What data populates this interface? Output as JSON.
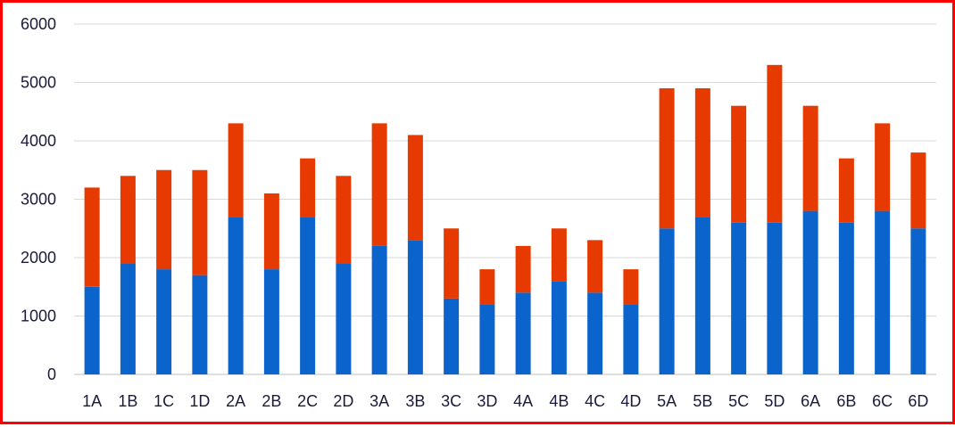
{
  "chart_data": {
    "type": "bar",
    "stacked": true,
    "categories": [
      "1A",
      "1B",
      "1C",
      "1D",
      "2A",
      "2B",
      "2C",
      "2D",
      "3A",
      "3B",
      "3C",
      "3D",
      "4A",
      "4B",
      "4C",
      "4D",
      "5A",
      "5B",
      "5C",
      "5D",
      "6A",
      "6B",
      "6C",
      "6D"
    ],
    "series": [
      {
        "color": "#0a64cc",
        "values": [
          1500,
          1900,
          1800,
          1700,
          2700,
          1800,
          2700,
          1900,
          2200,
          2300,
          1300,
          1200,
          1400,
          1600,
          1400,
          1200,
          2500,
          2700,
          2600,
          2600,
          2800,
          2600,
          2800,
          2500
        ]
      },
      {
        "color": "#e63a00",
        "values": [
          1700,
          1500,
          1700,
          1800,
          1600,
          1300,
          1000,
          1500,
          2100,
          1800,
          1200,
          600,
          800,
          900,
          900,
          600,
          2400,
          2200,
          2000,
          2700,
          1800,
          1100,
          1500,
          1300
        ]
      }
    ],
    "yticks": [
      "0",
      "1000",
      "2000",
      "3000",
      "4000",
      "5000",
      "6000"
    ],
    "ylim": [
      0,
      6000
    ],
    "grid": true,
    "legend": "none",
    "title": "",
    "xlabel": "",
    "ylabel": ""
  }
}
